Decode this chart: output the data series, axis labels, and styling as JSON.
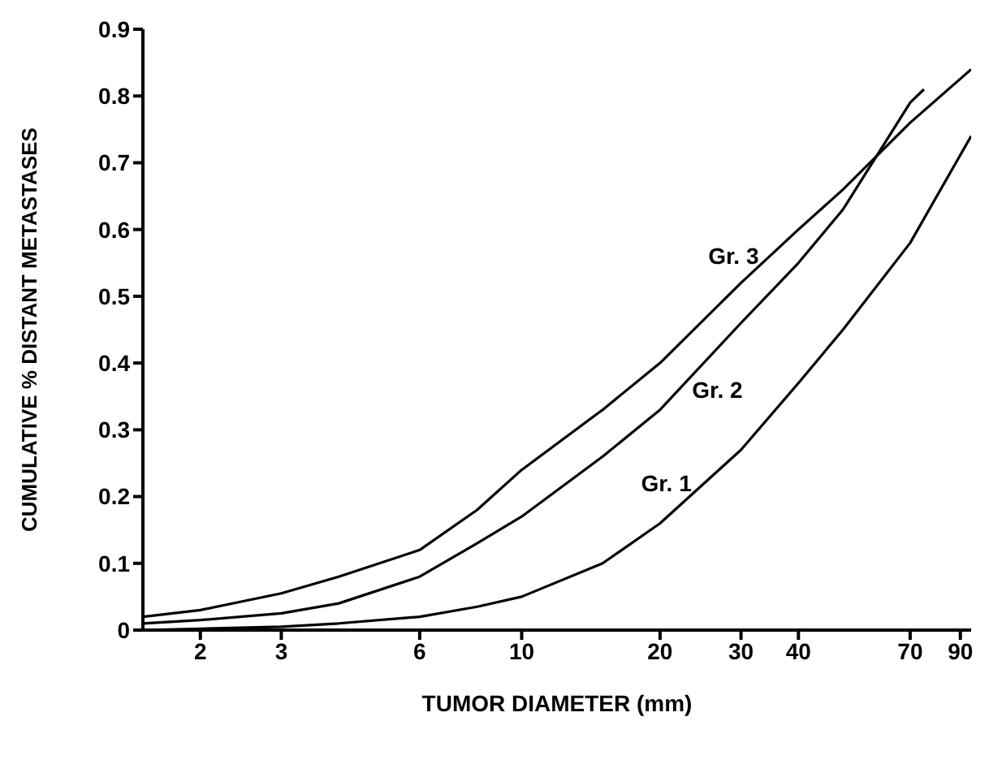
{
  "chart_data": {
    "type": "line",
    "xlabel": "TUMOR DIAMETER  (mm)",
    "ylabel": "CUMULATIVE % DISTANT METASTASES",
    "log": "x",
    "xlim": [
      1.5,
      95
    ],
    "xticks": [
      2,
      3,
      6,
      10,
      20,
      30,
      40,
      70,
      90
    ],
    "ylim": [
      0,
      0.9
    ],
    "yticks": [
      0,
      0.1,
      0.2,
      0.3,
      0.4,
      0.5,
      0.6,
      0.7,
      0.8,
      0.9
    ],
    "grid": false,
    "marker": "none",
    "line_style": "solid",
    "series": [
      {
        "color": "#000000",
        "x": [
          1.5,
          2,
          3,
          4,
          6,
          8,
          10,
          15,
          20,
          30,
          40,
          50,
          70,
          95
        ],
        "values": [
          0.02,
          0.03,
          0.055,
          0.08,
          0.12,
          0.18,
          0.24,
          0.33,
          0.4,
          0.52,
          0.6,
          0.66,
          0.76,
          0.84
        ]
      },
      {
        "color": "#000000",
        "x": [
          1.5,
          2,
          3,
          4,
          6,
          8,
          10,
          15,
          20,
          30,
          40,
          50,
          70,
          75
        ],
        "values": [
          0.01,
          0.015,
          0.025,
          0.04,
          0.08,
          0.13,
          0.17,
          0.26,
          0.33,
          0.46,
          0.55,
          0.63,
          0.79,
          0.81
        ]
      },
      {
        "color": "#000000",
        "x": [
          1.5,
          2,
          3,
          4,
          6,
          8,
          10,
          15,
          20,
          30,
          40,
          50,
          70,
          95
        ],
        "values": [
          0,
          0.002,
          0.005,
          0.01,
          0.02,
          0.035,
          0.05,
          0.1,
          0.16,
          0.27,
          0.37,
          0.45,
          0.58,
          0.74
        ]
      }
    ],
    "annotations": [
      {
        "text": "Gr. 3",
        "x": 35,
        "y": 0.56
      },
      {
        "text": "Gr. 2",
        "x": 22,
        "y": 0.36
      },
      {
        "text": "Gr. 1",
        "x": 25,
        "y": 0.22
      }
    ]
  }
}
